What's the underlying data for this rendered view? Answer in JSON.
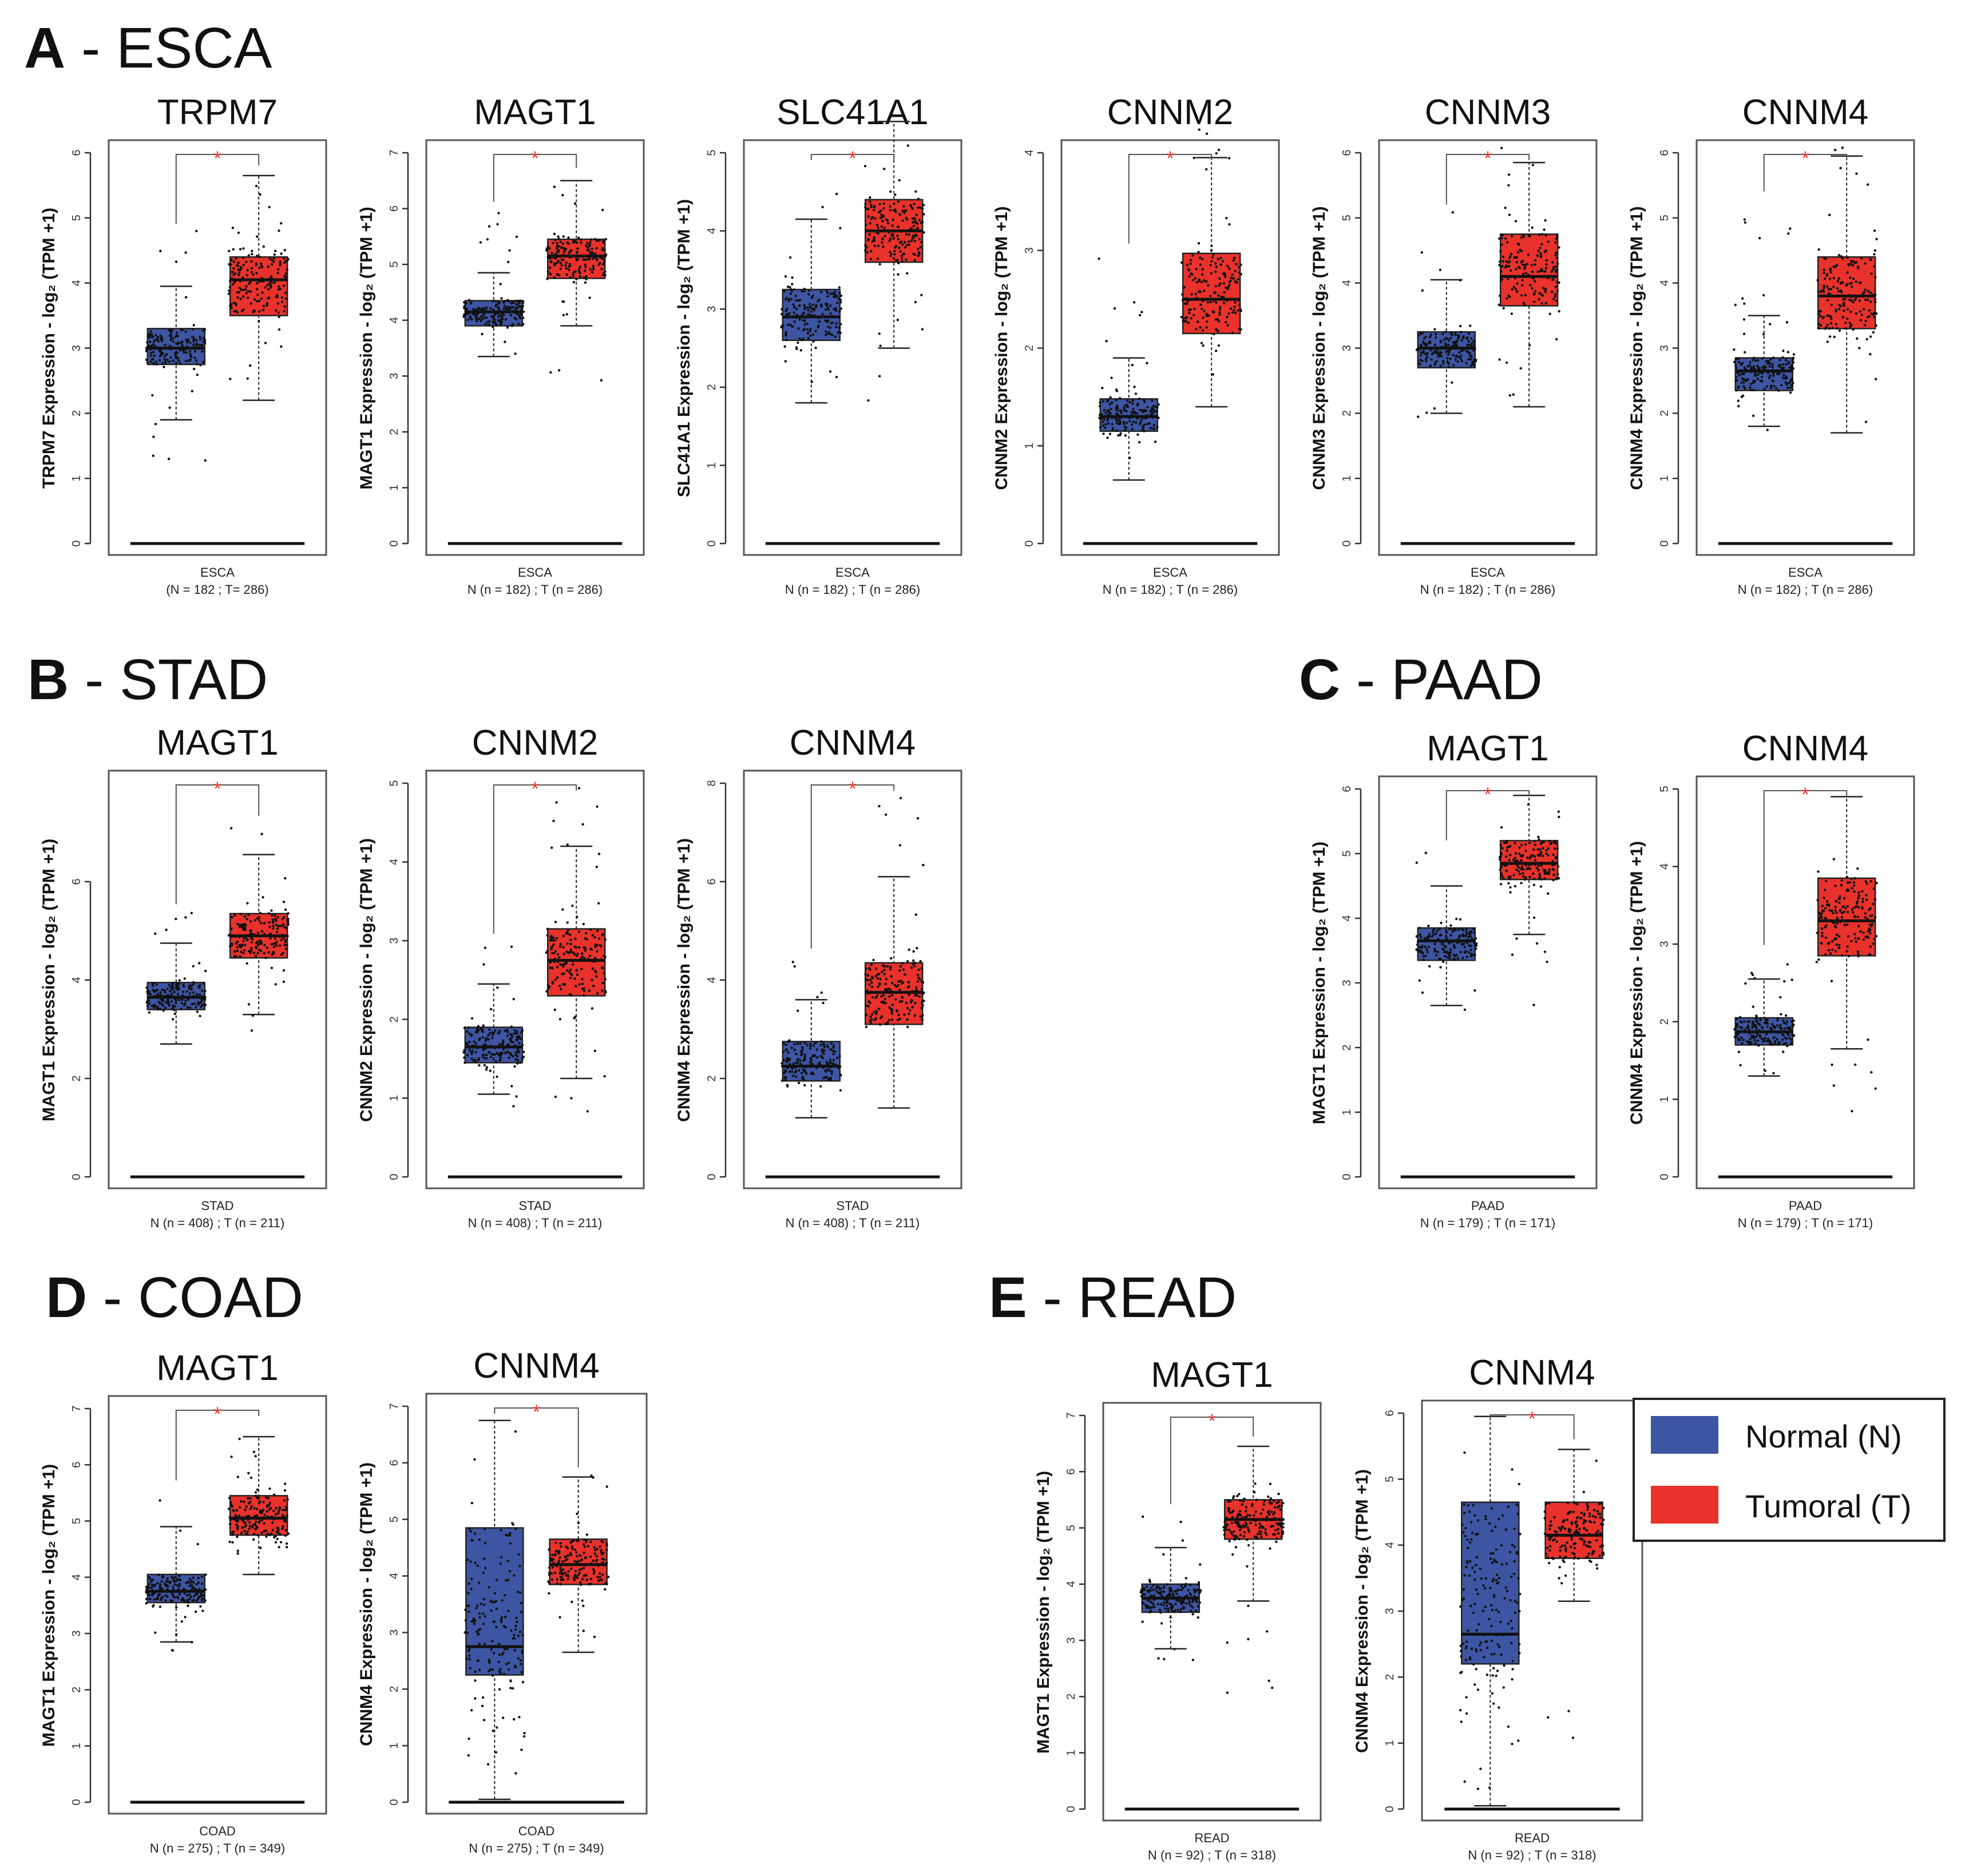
{
  "colors": {
    "normal": "#3d55a3",
    "tumoral": "#e8322b",
    "star": "#e8322b",
    "axis": "#333333",
    "frame": "#555555"
  },
  "legend": {
    "normal_label": "Normal (N)",
    "tumoral_label": "Tumoral (T)"
  },
  "yaxis_suffix": " Expression - log₂ (TPM +1)",
  "sections": [
    {
      "letter": "A",
      "title": " - ESCA"
    },
    {
      "letter": "B",
      "title": " - STAD"
    },
    {
      "letter": "C",
      "title": " - PAAD"
    },
    {
      "letter": "D",
      "title": " - COAD"
    },
    {
      "letter": "E",
      "title": " - READ"
    }
  ],
  "chart_data": [
    {
      "type": "boxplot",
      "gene": "TRPM7",
      "cancer": "ESCA",
      "n_label": "(N = 182 ; T= 286)",
      "significance": "*",
      "ylim": [
        0,
        6
      ],
      "yticks": [
        0,
        1,
        2,
        3,
        4,
        5,
        6
      ],
      "normal": {
        "whisker_low": 1.9,
        "q1": 2.75,
        "median": 3.0,
        "q3": 3.3,
        "whisker_high": 3.95,
        "pt_min": 1.2,
        "pt_max": 4.8
      },
      "tumoral": {
        "whisker_low": 2.2,
        "q1": 3.5,
        "median": 4.05,
        "q3": 4.4,
        "whisker_high": 5.65,
        "pt_min": 2.2,
        "pt_max": 5.7
      }
    },
    {
      "type": "boxplot",
      "gene": "MAGT1",
      "cancer": "ESCA",
      "n_label": "N (n = 182) ; T (n = 286)",
      "significance": "*",
      "ylim": [
        0,
        7
      ],
      "yticks": [
        0,
        1,
        2,
        3,
        4,
        5,
        6,
        7
      ],
      "normal": {
        "whisker_low": 3.35,
        "q1": 3.9,
        "median": 4.15,
        "q3": 4.35,
        "whisker_high": 4.85,
        "pt_min": 2.9,
        "pt_max": 6.0
      },
      "tumoral": {
        "whisker_low": 3.9,
        "q1": 4.75,
        "median": 5.15,
        "q3": 5.45,
        "whisker_high": 6.5,
        "pt_min": 2.65,
        "pt_max": 6.6
      }
    },
    {
      "type": "boxplot",
      "gene": "SLC41A1",
      "cancer": "ESCA",
      "n_label": "N (n = 182) ; T (n = 286)",
      "significance": "*",
      "ylim": [
        0,
        5
      ],
      "yticks": [
        0,
        1,
        2,
        3,
        4,
        5
      ],
      "normal": {
        "whisker_low": 1.8,
        "q1": 2.6,
        "median": 2.9,
        "q3": 3.25,
        "whisker_high": 4.15,
        "pt_min": 1.8,
        "pt_max": 4.9
      },
      "tumoral": {
        "whisker_low": 2.5,
        "q1": 3.6,
        "median": 4.0,
        "q3": 4.4,
        "whisker_high": 5.4,
        "pt_min": 1.8,
        "pt_max": 5.5
      }
    },
    {
      "type": "boxplot",
      "gene": "CNNM2",
      "cancer": "ESCA",
      "n_label": "N (n = 182) ; T (n = 286)",
      "significance": "*",
      "ylim": [
        0,
        4
      ],
      "yticks": [
        0,
        1,
        2,
        3,
        4
      ],
      "normal": {
        "whisker_low": 0.65,
        "q1": 1.15,
        "median": 1.3,
        "q3": 1.48,
        "whisker_high": 1.9,
        "pt_min": 0.6,
        "pt_max": 3.0
      },
      "tumoral": {
        "whisker_low": 1.4,
        "q1": 2.15,
        "median": 2.5,
        "q3": 2.97,
        "whisker_high": 3.95,
        "pt_min": 1.4,
        "pt_max": 4.3
      }
    },
    {
      "type": "boxplot",
      "gene": "CNNM3",
      "cancer": "ESCA",
      "n_label": "N (n = 182) ; T (n = 286)",
      "significance": "*",
      "ylim": [
        0,
        6
      ],
      "yticks": [
        0,
        1,
        2,
        3,
        4,
        5,
        6
      ],
      "normal": {
        "whisker_low": 2.0,
        "q1": 2.7,
        "median": 3.0,
        "q3": 3.25,
        "whisker_high": 4.05,
        "pt_min": 1.7,
        "pt_max": 5.1
      },
      "tumoral": {
        "whisker_low": 2.1,
        "q1": 3.65,
        "median": 4.1,
        "q3": 4.75,
        "whisker_high": 5.85,
        "pt_min": 2.1,
        "pt_max": 6.2
      }
    },
    {
      "type": "boxplot",
      "gene": "CNNM4",
      "cancer": "ESCA",
      "n_label": "N (n = 182) ; T (n = 286)",
      "significance": "*",
      "ylim": [
        0,
        6
      ],
      "yticks": [
        0,
        1,
        2,
        3,
        4,
        5,
        6
      ],
      "normal": {
        "whisker_low": 1.8,
        "q1": 2.35,
        "median": 2.65,
        "q3": 2.85,
        "whisker_high": 3.5,
        "pt_min": 1.5,
        "pt_max": 5.3
      },
      "tumoral": {
        "whisker_low": 1.7,
        "q1": 3.3,
        "median": 3.8,
        "q3": 4.4,
        "whisker_high": 5.95,
        "pt_min": 1.7,
        "pt_max": 6.2
      }
    },
    {
      "type": "boxplot",
      "gene": "MAGT1",
      "cancer": "STAD",
      "n_label": "N (n = 408) ; T (n = 211)",
      "significance": "*",
      "ylim": [
        0,
        8
      ],
      "yticks": [
        0,
        2,
        4,
        6
      ],
      "normal": {
        "whisker_low": 2.7,
        "q1": 3.4,
        "median": 3.65,
        "q3": 3.95,
        "whisker_high": 4.75,
        "pt_min": 2.7,
        "pt_max": 5.4
      },
      "tumoral": {
        "whisker_low": 3.3,
        "q1": 4.45,
        "median": 4.9,
        "q3": 5.35,
        "whisker_high": 6.55,
        "pt_min": 2.9,
        "pt_max": 7.2
      }
    },
    {
      "type": "boxplot",
      "gene": "CNNM2",
      "cancer": "STAD",
      "n_label": "N (n = 408) ; T (n = 211)",
      "significance": "*",
      "ylim": [
        0,
        5
      ],
      "yticks": [
        0,
        1,
        2,
        3,
        4,
        5
      ],
      "normal": {
        "whisker_low": 1.05,
        "q1": 1.45,
        "median": 1.65,
        "q3": 1.9,
        "whisker_high": 2.45,
        "pt_min": 0.8,
        "pt_max": 3.0
      },
      "tumoral": {
        "whisker_low": 1.25,
        "q1": 2.3,
        "median": 2.75,
        "q3": 3.15,
        "whisker_high": 4.2,
        "pt_min": 0.8,
        "pt_max": 4.95
      }
    },
    {
      "type": "boxplot",
      "gene": "CNNM4",
      "cancer": "STAD",
      "n_label": "N (n = 408) ; T (n = 211)",
      "significance": "*",
      "ylim": [
        0,
        8
      ],
      "yticks": [
        0,
        2,
        4,
        6,
        8
      ],
      "normal": {
        "whisker_low": 1.2,
        "q1": 1.95,
        "median": 2.25,
        "q3": 2.75,
        "whisker_high": 3.6,
        "pt_min": 1.2,
        "pt_max": 4.5
      },
      "tumoral": {
        "whisker_low": 1.4,
        "q1": 3.1,
        "median": 3.75,
        "q3": 4.35,
        "whisker_high": 6.1,
        "pt_min": 1.4,
        "pt_max": 7.8
      }
    },
    {
      "type": "boxplot",
      "gene": "MAGT1",
      "cancer": "PAAD",
      "n_label": "N (n = 179) ; T (n = 171)",
      "significance": "*",
      "ylim": [
        0,
        6
      ],
      "yticks": [
        0,
        1,
        2,
        3,
        4,
        5,
        6
      ],
      "normal": {
        "whisker_low": 2.65,
        "q1": 3.35,
        "median": 3.65,
        "q3": 3.85,
        "whisker_high": 4.5,
        "pt_min": 2.5,
        "pt_max": 5.1
      },
      "tumoral": {
        "whisker_low": 3.75,
        "q1": 4.6,
        "median": 4.85,
        "q3": 5.2,
        "whisker_high": 5.9,
        "pt_min": 2.6,
        "pt_max": 5.95
      }
    },
    {
      "type": "boxplot",
      "gene": "CNNM4",
      "cancer": "PAAD",
      "n_label": "N (n = 179) ; T (n = 171)",
      "significance": "*",
      "ylim": [
        0,
        5
      ],
      "yticks": [
        0,
        1,
        2,
        3,
        4,
        5
      ],
      "normal": {
        "whisker_low": 1.3,
        "q1": 1.7,
        "median": 1.87,
        "q3": 2.05,
        "whisker_high": 2.55,
        "pt_min": 1.3,
        "pt_max": 2.9
      },
      "tumoral": {
        "whisker_low": 1.65,
        "q1": 2.85,
        "median": 3.3,
        "q3": 3.85,
        "whisker_high": 4.9,
        "pt_min": 0.8,
        "pt_max": 4.9
      }
    },
    {
      "type": "boxplot",
      "gene": "MAGT1",
      "cancer": "COAD",
      "n_label": "N (n = 275) ; T (n = 349)",
      "significance": "*",
      "ylim": [
        0,
        7
      ],
      "yticks": [
        0,
        1,
        2,
        3,
        4,
        5,
        6,
        7
      ],
      "normal": {
        "whisker_low": 2.85,
        "q1": 3.55,
        "median": 3.75,
        "q3": 4.05,
        "whisker_high": 4.9,
        "pt_min": 2.4,
        "pt_max": 5.6
      },
      "tumoral": {
        "whisker_low": 4.05,
        "q1": 4.75,
        "median": 5.05,
        "q3": 5.45,
        "whisker_high": 6.5,
        "pt_min": 4.0,
        "pt_max": 6.8
      }
    },
    {
      "type": "boxplot",
      "gene": "CNNM4",
      "cancer": "COAD",
      "n_label": "N (n = 275) ; T (n = 349)",
      "significance": "*",
      "ylim": [
        0,
        7
      ],
      "yticks": [
        0,
        1,
        2,
        3,
        4,
        5,
        6,
        7
      ],
      "normal": {
        "whisker_low": 0.05,
        "q1": 2.25,
        "median": 2.75,
        "q3": 4.85,
        "whisker_high": 6.75,
        "pt_min": 0.05,
        "pt_max": 6.8
      },
      "tumoral": {
        "whisker_low": 2.65,
        "q1": 3.85,
        "median": 4.2,
        "q3": 4.65,
        "whisker_high": 5.75,
        "pt_min": 2.4,
        "pt_max": 5.8
      }
    },
    {
      "type": "boxplot",
      "gene": "MAGT1",
      "cancer": "READ",
      "n_label": "N (n = 92) ; T (n = 318)",
      "significance": "*",
      "ylim": [
        0,
        7
      ],
      "yticks": [
        0,
        1,
        2,
        3,
        4,
        5,
        6,
        7
      ],
      "normal": {
        "whisker_low": 2.85,
        "q1": 3.5,
        "median": 3.75,
        "q3": 4.0,
        "whisker_high": 4.65,
        "pt_min": 2.4,
        "pt_max": 5.3
      },
      "tumoral": {
        "whisker_low": 3.7,
        "q1": 4.8,
        "median": 5.15,
        "q3": 5.5,
        "whisker_high": 6.45,
        "pt_min": 1.95,
        "pt_max": 6.5
      }
    },
    {
      "type": "boxplot",
      "gene": "CNNM4",
      "cancer": "READ",
      "n_label": "N (n = 92) ; T (n = 318)",
      "significance": "*",
      "ylim": [
        0,
        6
      ],
      "yticks": [
        0,
        1,
        2,
        3,
        4,
        5,
        6
      ],
      "normal": {
        "whisker_low": 0.05,
        "q1": 2.2,
        "median": 2.65,
        "q3": 4.65,
        "whisker_high": 5.95,
        "pt_min": 0.05,
        "pt_max": 6.0
      },
      "tumoral": {
        "whisker_low": 3.15,
        "q1": 3.8,
        "median": 4.15,
        "q3": 4.65,
        "whisker_high": 5.45,
        "pt_min": 1.0,
        "pt_max": 5.5
      }
    }
  ]
}
